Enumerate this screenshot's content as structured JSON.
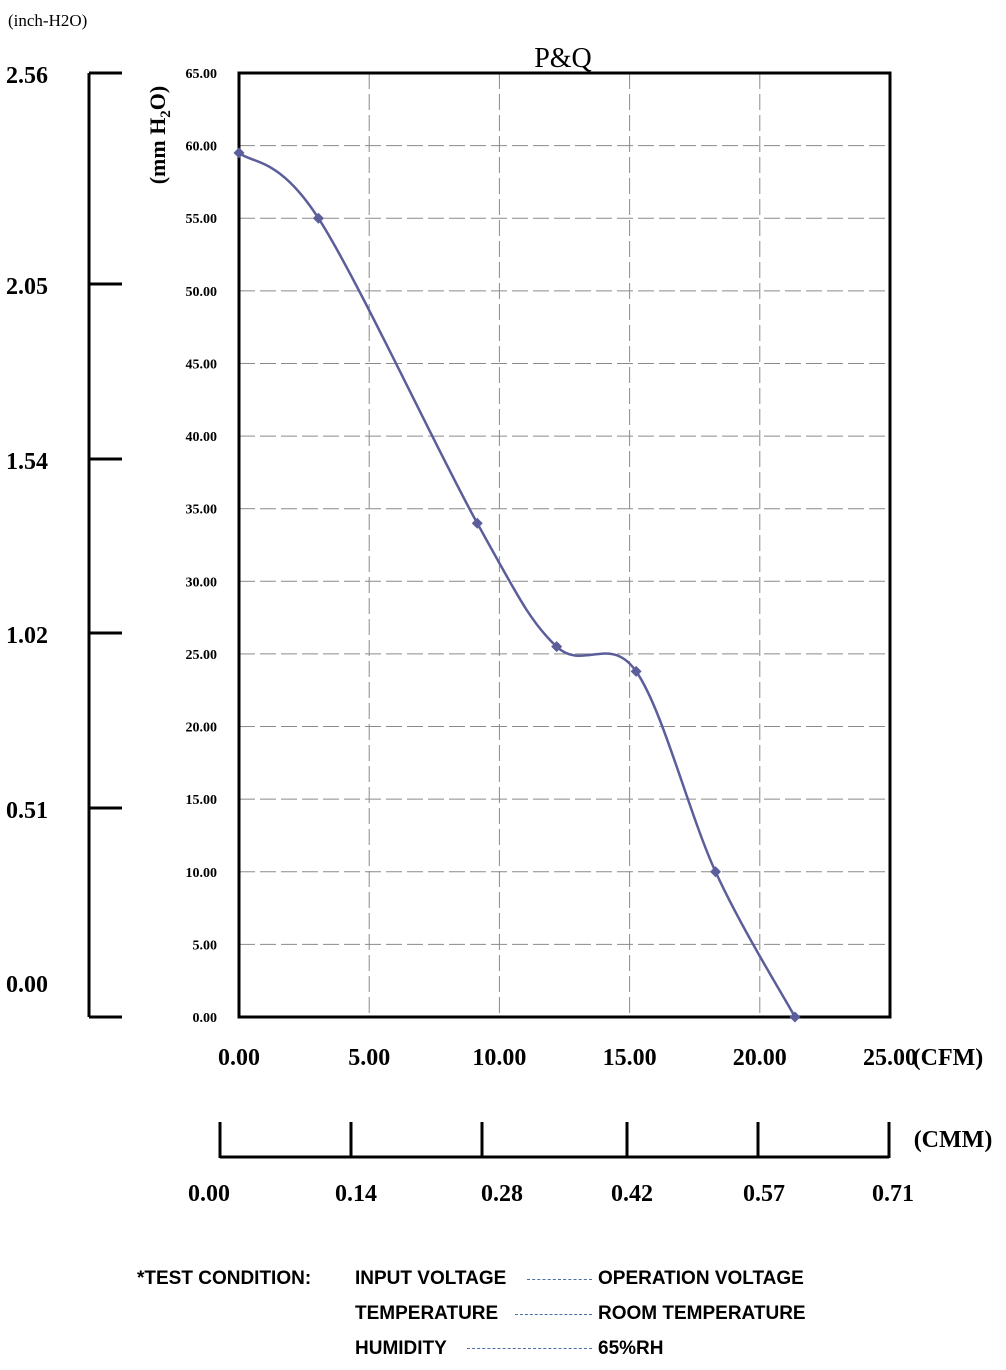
{
  "chart_data": {
    "type": "line",
    "title": "P&Q",
    "left_unit_label": "(inch-H2O)",
    "ylabel_parts": [
      "(mm H",
      "2",
      "O)"
    ],
    "x_unit_cfm": "(CFM)",
    "x_unit_cmm": "(CMM)",
    "xlim": [
      0,
      25
    ],
    "ylim": [
      0,
      65
    ],
    "x_ticks": [
      "0.00",
      "5.00",
      "10.00",
      "15.00",
      "20.00",
      "25.00"
    ],
    "y_ticks": [
      "0.00",
      "5.00",
      "10.00",
      "15.00",
      "20.00",
      "25.00",
      "30.00",
      "35.00",
      "40.00",
      "45.00",
      "50.00",
      "55.00",
      "60.00",
      "65.00"
    ],
    "inch_ticks": [
      "0.00",
      "0.51",
      "1.02",
      "1.54",
      "2.05",
      "2.56"
    ],
    "cmm_ticks": [
      "0.00",
      "0.14",
      "0.28",
      "0.42",
      "0.57",
      "0.71"
    ],
    "grid": true,
    "series": [
      {
        "color": "#5b5e9a",
        "x": [
          0.0,
          3.05,
          9.15,
          12.2,
          15.25,
          18.3,
          21.35
        ],
        "y": [
          59.5,
          55.0,
          34.0,
          25.5,
          23.8,
          10.0,
          0.0
        ]
      }
    ]
  },
  "test_condition": {
    "heading": "*TEST CONDITION:",
    "rows": [
      {
        "label": "INPUT VOLTAGE",
        "value": "OPERATION VOLTAGE"
      },
      {
        "label": "TEMPERATURE",
        "value": "ROOM TEMPERATURE"
      },
      {
        "label": "HUMIDITY",
        "value": "65%RH"
      }
    ]
  }
}
